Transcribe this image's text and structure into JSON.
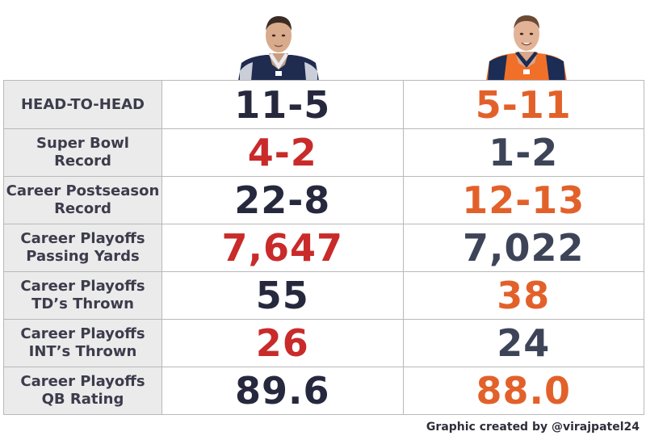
{
  "rows": [
    {
      "label1": "HEAD-TO-HEAD",
      "label2": "",
      "left": "11-5",
      "right": "5-11"
    },
    {
      "label1": "Super Bowl",
      "label2": "Record",
      "left": "4-2",
      "right": "1-2"
    },
    {
      "label1": "Career Postseason",
      "label2": "Record",
      "left": "22-8",
      "right": "12-13"
    },
    {
      "label1": "Career Playoffs",
      "label2": "Passing Yards",
      "left": "7,647",
      "right": "7,022"
    },
    {
      "label1": "Career Playoffs",
      "label2": "TD’s Thrown",
      "left": "55",
      "right": "38"
    },
    {
      "label1": "Career Playoffs",
      "label2": "INT’s Thrown",
      "left": "26",
      "right": "24"
    },
    {
      "label1": "Career Playoffs",
      "label2": "QB Rating",
      "left": "89.6",
      "right": "88.0"
    }
  ],
  "credit": "Graphic created by @virajpatel24",
  "colors": {
    "navy": "#26293d",
    "red": "#c92a2a",
    "orange": "#e2612a",
    "slate": "#3e4458",
    "label_bg": "#ebebeb",
    "border": "#b9b9b9"
  },
  "icons": {
    "left_player": "player-photo-navy-jersey",
    "right_player": "player-photo-orange-jersey"
  }
}
